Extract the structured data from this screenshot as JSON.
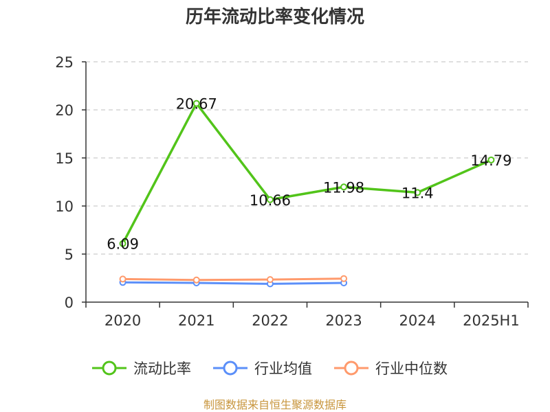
{
  "chart_data": {
    "type": "line",
    "title": "历年流动比率变化情况",
    "categories": [
      "2020",
      "2021",
      "2022",
      "2023",
      "2024",
      "2025H1"
    ],
    "ylim": [
      0,
      25
    ],
    "yticks": [
      0,
      5,
      10,
      15,
      20,
      25
    ],
    "grid": true,
    "legend_position": "bottom",
    "series": [
      {
        "name": "流动比率",
        "color": "#52c41a",
        "values": [
          6.09,
          20.67,
          10.66,
          11.98,
          11.4,
          14.79
        ],
        "data_labels": [
          "6.09",
          "20.67",
          "10.66",
          "11.98",
          "11.4",
          "14.79"
        ]
      },
      {
        "name": "行业均值",
        "color": "#5b8ff9",
        "values": [
          2.05,
          2.0,
          1.9,
          2.0,
          null,
          null
        ]
      },
      {
        "name": "行业中位数",
        "color": "#ff9a6c",
        "values": [
          2.4,
          2.3,
          2.35,
          2.45,
          null,
          null
        ]
      }
    ]
  },
  "source": {
    "text": "制图数据来自恒生聚源数据库",
    "color": "#c8963e"
  }
}
